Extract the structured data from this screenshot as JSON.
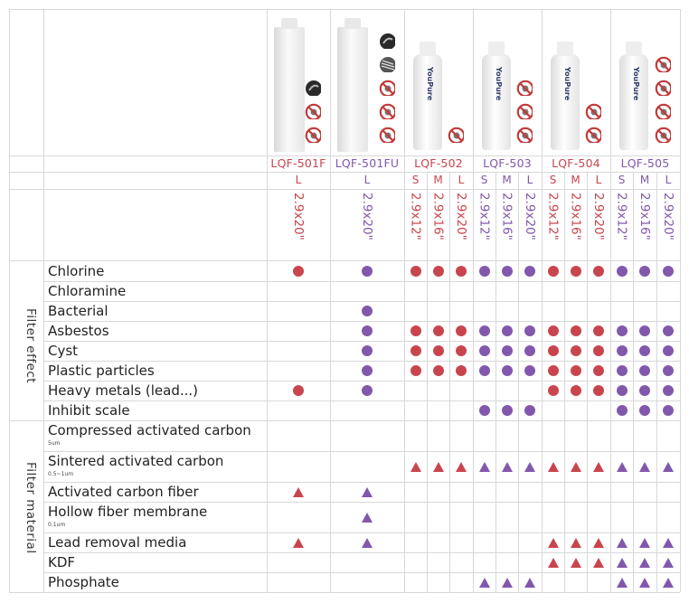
{
  "colors": {
    "red": "#c9454e",
    "purple": "#8258ad",
    "grid": "#d8d8d8",
    "text": "#222222"
  },
  "sections": {
    "effect": "Filter effect",
    "material": "Filter material"
  },
  "models": [
    {
      "name": "LQF-501F",
      "color": "red",
      "sizes": [
        "L"
      ],
      "dims": [
        "2.9x20\""
      ]
    },
    {
      "name": "LQF-501FU",
      "color": "purple",
      "sizes": [
        "L"
      ],
      "dims": [
        "2.9x20\""
      ]
    },
    {
      "name": "LQF-502",
      "color": "red",
      "sizes": [
        "S",
        "M",
        "L"
      ],
      "dims": [
        "2.9x12\"",
        "2.9x16\"",
        "2.9x20\""
      ]
    },
    {
      "name": "LQF-503",
      "color": "purple",
      "sizes": [
        "S",
        "M",
        "L"
      ],
      "dims": [
        "2.9x12\"",
        "2.9x16\"",
        "2.9x20\""
      ]
    },
    {
      "name": "LQF-504",
      "color": "red",
      "sizes": [
        "S",
        "M",
        "L"
      ],
      "dims": [
        "2.9x12\"",
        "2.9x16\"",
        "2.9x20\""
      ]
    },
    {
      "name": "LQF-505",
      "color": "purple",
      "sizes": [
        "S",
        "M",
        "L"
      ],
      "dims": [
        "2.9x12\"",
        "2.9x16\"",
        "2.9x20\""
      ]
    }
  ],
  "product_images": [
    {
      "model": "LQF-501F",
      "cartridge": "plain white cartridge",
      "icons": [
        "dark-disc-icon",
        "no-bacteria-icon",
        "no-chemical-icon"
      ]
    },
    {
      "model": "LQF-501FU",
      "cartridge": "plain white cartridge",
      "icons": [
        "dark-disc-icon",
        "fiber-icon",
        "no-bacteria-icon",
        "no-chemical-icon",
        "no-heavy-metal-icon"
      ]
    },
    {
      "model": "LQF-502",
      "cartridge": "YouPure cartridge",
      "icons": [
        "no-bacteria-icon"
      ]
    },
    {
      "model": "LQF-503",
      "cartridge": "YouPure cartridge",
      "icons": [
        "no-scale-icon",
        "no-chemical-icon",
        "no-bacteria-icon"
      ]
    },
    {
      "model": "LQF-504",
      "cartridge": "YouPure cartridge",
      "icons": [
        "no-heavy-metal-icon",
        "no-bacteria-icon"
      ]
    },
    {
      "model": "LQF-505",
      "cartridge": "YouPure cartridge",
      "icons": [
        "no-scale-icon",
        "no-chemical-icon",
        "no-heavy-metal-icon",
        "no-bacteria-icon"
      ]
    }
  ],
  "cartridge_brand": "YouPure",
  "effects": [
    {
      "label": "Chlorine",
      "marks": [
        "dot",
        "dot",
        "dot",
        "dot",
        "dot",
        "dot",
        "dot",
        "dot",
        "dot",
        "dot",
        "dot",
        "dot",
        "dot",
        "dot"
      ]
    },
    {
      "label": "Chloramine",
      "marks": [
        "",
        "",
        "",
        "",
        "",
        "",
        "",
        "",
        "",
        "",
        "",
        "",
        "",
        ""
      ]
    },
    {
      "label": "Bacterial",
      "marks": [
        "",
        "dot",
        "",
        "",
        "",
        "",
        "",
        "",
        "",
        "",
        "",
        "",
        "",
        ""
      ]
    },
    {
      "label": "Asbestos",
      "marks": [
        "",
        "dot",
        "dot",
        "dot",
        "dot",
        "dot",
        "dot",
        "dot",
        "dot",
        "dot",
        "dot",
        "dot",
        "dot",
        "dot"
      ]
    },
    {
      "label": "Cyst",
      "marks": [
        "",
        "dot",
        "dot",
        "dot",
        "dot",
        "dot",
        "dot",
        "dot",
        "dot",
        "dot",
        "dot",
        "dot",
        "dot",
        "dot"
      ]
    },
    {
      "label": "Plastic particles",
      "marks": [
        "",
        "dot",
        "dot",
        "dot",
        "dot",
        "dot",
        "dot",
        "dot",
        "dot",
        "dot",
        "dot",
        "dot",
        "dot",
        "dot"
      ]
    },
    {
      "label": "Heavy metals (lead...)",
      "marks": [
        "dot",
        "dot",
        "",
        "",
        "",
        "",
        "",
        "",
        "dot",
        "dot",
        "dot",
        "dot",
        "dot",
        "dot"
      ]
    },
    {
      "label": "Inhibit scale",
      "marks": [
        "",
        "",
        "",
        "",
        "",
        "dot",
        "dot",
        "dot",
        "",
        "",
        "",
        "dot",
        "dot",
        "dot"
      ]
    }
  ],
  "materials": [
    {
      "label": "Compressed activated carbon",
      "sub": "5um",
      "marks": [
        "",
        "",
        "",
        "",
        "",
        "",
        "",
        "",
        "",
        "",
        "",
        "",
        "",
        ""
      ]
    },
    {
      "label": "Sintered activated carbon",
      "sub": "0.5~1um",
      "marks": [
        "",
        "",
        "tri",
        "tri",
        "tri",
        "tri",
        "tri",
        "tri",
        "tri",
        "tri",
        "tri",
        "tri",
        "tri",
        "tri"
      ]
    },
    {
      "label": "Activated carbon fiber",
      "sub": "",
      "marks": [
        "tri",
        "tri",
        "",
        "",
        "",
        "",
        "",
        "",
        "",
        "",
        "",
        "",
        "",
        ""
      ]
    },
    {
      "label": "Hollow fiber membrane",
      "sub": "0.1um",
      "marks": [
        "",
        "tri",
        "",
        "",
        "",
        "",
        "",
        "",
        "",
        "",
        "",
        "",
        "",
        ""
      ]
    },
    {
      "label": "Lead removal media",
      "sub": "",
      "marks": [
        "tri",
        "tri",
        "",
        "",
        "",
        "",
        "",
        "",
        "tri",
        "tri",
        "tri",
        "tri",
        "tri",
        "tri"
      ]
    },
    {
      "label": "KDF",
      "sub": "",
      "marks": [
        "",
        "",
        "",
        "",
        "",
        "",
        "",
        "",
        "tri",
        "tri",
        "tri",
        "tri",
        "tri",
        "tri"
      ]
    },
    {
      "label": "Phosphate",
      "sub": "",
      "marks": [
        "",
        "",
        "",
        "",
        "",
        "tri",
        "tri",
        "tri",
        "",
        "",
        "",
        "tri",
        "tri",
        "tri"
      ]
    }
  ]
}
